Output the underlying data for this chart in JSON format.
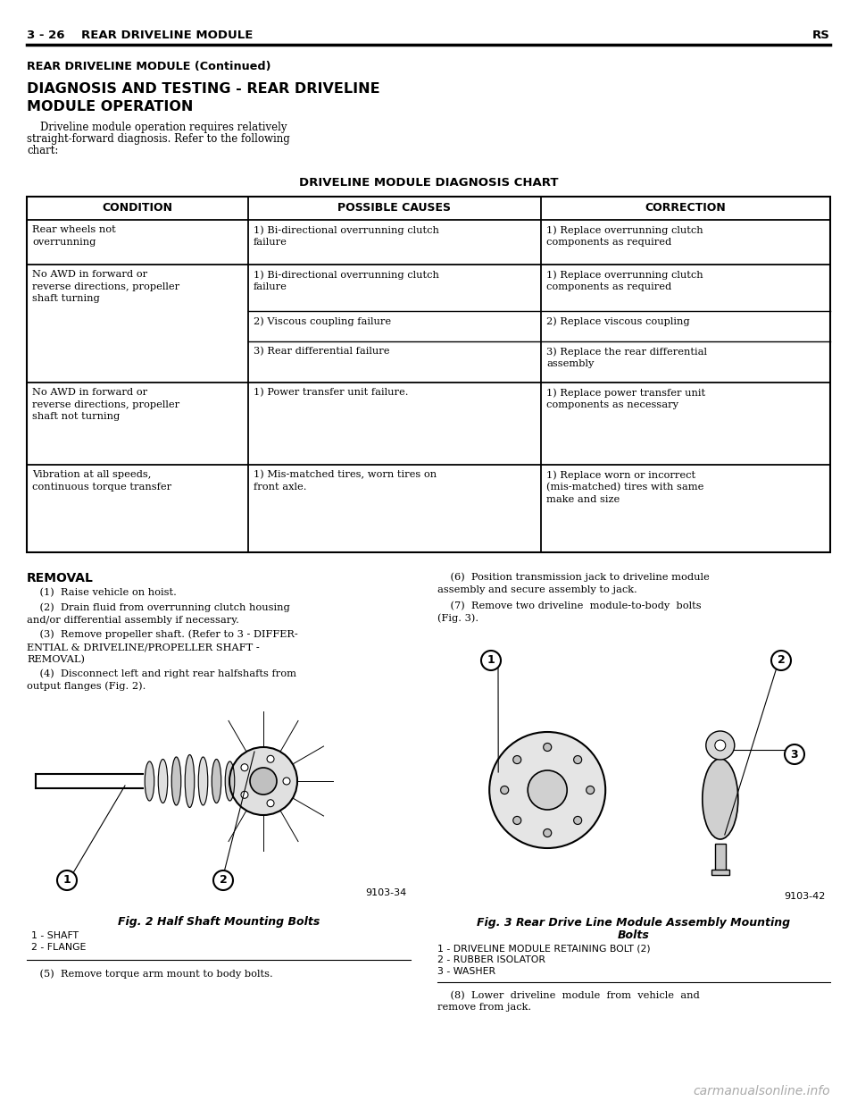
{
  "page_header_left": "3 - 26    REAR DRIVELINE MODULE",
  "page_header_right": "RS",
  "section_continued": "REAR DRIVELINE MODULE (Continued)",
  "section_title_line1": "DIAGNOSIS AND TESTING - REAR DRIVELINE",
  "section_title_line2": "MODULE OPERATION",
  "body_text_line1": "    Driveline module operation requires relatively",
  "body_text_line2": "straight-forward diagnosis. Refer to the following",
  "body_text_line3": "chart:",
  "chart_title": "DRIVELINE MODULE DIAGNOSIS CHART",
  "table_headers": [
    "CONDITION",
    "POSSIBLE CAUSES",
    "CORRECTION"
  ],
  "removal_title": "REMOVAL",
  "removal_lines": [
    "    (1)  Raise vehicle on hoist.",
    "    (2)  Drain fluid from overrunning clutch housing\nand/or differential assembly if necessary.",
    "    (3)  Remove propeller shaft. (Refer to 3 - DIFFER-\nENTIAL & DRIVELINE/PROPELLER SHAFT -\nREMOVAL)",
    "    (4)  Disconnect left and right rear halfshafts from\noutput flanges (Fig. 2)."
  ],
  "right_col_lines": [
    "    (6)  Position transmission jack to driveline module\nassembly and secure assembly to jack.",
    "    (7)  Remove two driveline  module-to-body  bolts\n(Fig. 3)."
  ],
  "fig2_number": "9103-34",
  "fig2_caption": "Fig. 2 Half Shaft Mounting Bolts",
  "fig2_labels": [
    "1 - SHAFT",
    "2 - FLANGE"
  ],
  "fig3_number": "9103-42",
  "fig3_caption_line1": "Fig. 3 Rear Drive Line Module Assembly Mounting",
  "fig3_caption_line2": "Bolts",
  "fig3_labels": [
    "1 - DRIVELINE MODULE RETAINING BOLT (2)",
    "2 - RUBBER ISOLATOR",
    "3 - WASHER"
  ],
  "step5": "    (5)  Remove torque arm mount to body bolts.",
  "step8_line1": "    (8)  Lower  driveline  module  from  vehicle  and",
  "step8_line2": "remove from jack.",
  "watermark": "carmanualsonline.info",
  "bg": "#ffffff"
}
